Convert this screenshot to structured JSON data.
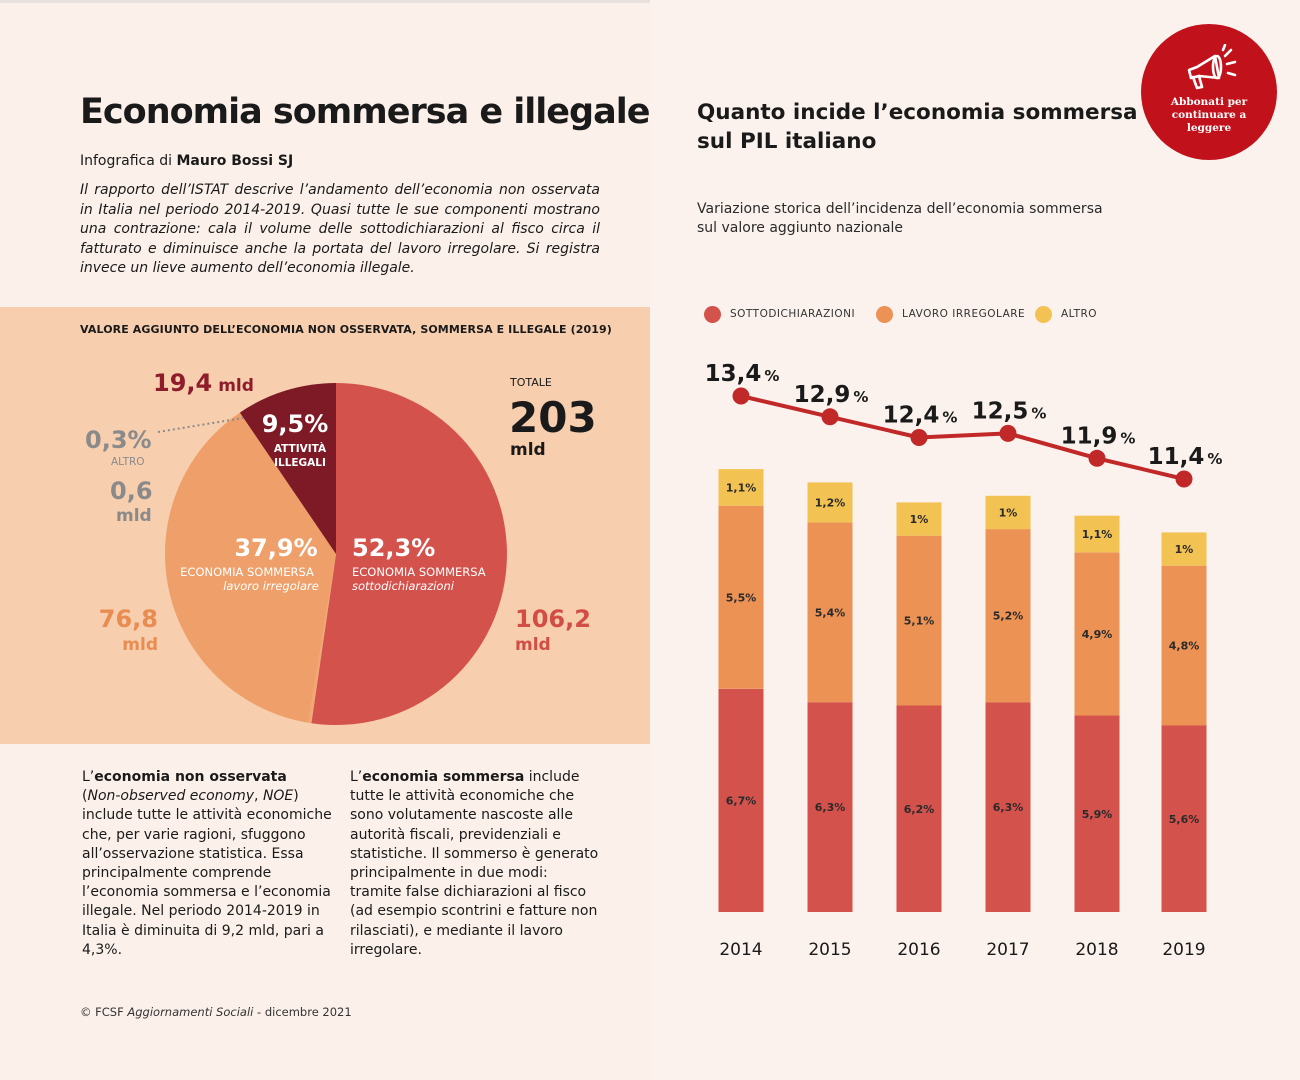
{
  "left": {
    "title": "Economia sommersa e illegale",
    "byline_prefix": "Infografica di",
    "byline_author": "Mauro Bossi SJ",
    "intro": "Il rapporto dell’ISTAT descrive l’andamento dell’economia non osservata in Italia nel periodo 2014-2019. Quasi tutte le sue componenti mostrano una contrazione: cala il volume delle sottodichiarazioni al fisco circa il fatturato e diminuisce anche la portata del lavoro irregolare. Si registra invece un lieve aumento dell’economia illegale.",
    "pie_heading": "VALORE AGGIUNTO DELL’ECONOMIA NON OSSERVATA, SOMMERSA E ILLEGALE (2019)",
    "col1": {
      "lead": "L’",
      "term": "economia non osservata",
      "open_paren": "(",
      "term_en": "Non-observed economy",
      "comma": ", ",
      "abbr": "NOE",
      "close_paren": ")",
      "body": " include tutte le attività economiche che, per varie ragioni, sfuggono all’osservazione statistica. Essa principalmente comprende l’economia sommersa e l’economia illegale. Nel periodo 2014-2019 in Italia è diminuita di 9,2 mld, pari a 4,3%."
    },
    "col2": {
      "lead": "L’",
      "term": "economia sommersa",
      "body": " include tutte le attività economiche che sono volutamente nascoste alle autorità fiscali, previdenziali e statistiche. Il sommerso è generato principalmente in due modi: tramite false dichiarazioni al fisco (ad esempio scontrini e fatture non rilasciati), e mediante il lavoro irregolare."
    },
    "footer_prefix": "© FCSF",
    "footer_pub": "Aggiornamenti Sociali",
    "footer_suffix": "- dicembre 2021"
  },
  "right": {
    "title_line1": "Quanto incide l’economia sommersa",
    "title_line2": "sul PIL italiano",
    "subtitle_line1": "Variazione storica dell’incidenza dell’economia sommersa",
    "subtitle_line2": "sul valore aggiunto nazionale"
  },
  "badge": {
    "line1": "Abbonati per",
    "line2": "continuare a",
    "line3": "leggere",
    "icon": "megaphone-icon"
  },
  "colors": {
    "sotto": "#d4524c",
    "lavoro": "#eb9254",
    "altro": "#f2c252",
    "illegale": "#7e1a26",
    "line": "#c12828",
    "pie_altro": "#f0a877",
    "pie_lavoro": "#efa06a",
    "value_altro": "#888888"
  },
  "chart_data": [
    {
      "type": "pie",
      "title": "VALORE AGGIUNTO DELL’ECONOMIA NON OSSERVATA, SOMMERSA E ILLEGALE (2019)",
      "total_label": "TOTALE",
      "total_value": "203",
      "total_unit": "mld",
      "slices": [
        {
          "key": "sotto",
          "pct": 52.3,
          "pct_label": "52,3%",
          "name": "ECONOMIA SOMMERSA",
          "sub": "sottodichiarazioni",
          "value_label": "106,2",
          "unit": "mld"
        },
        {
          "key": "altro",
          "pct": 0.3,
          "pct_label": "0,3%",
          "name": "ALTRO",
          "sub": "",
          "value_label": "0,6",
          "unit": "mld"
        },
        {
          "key": "lavoro",
          "pct": 37.9,
          "pct_label": "37,9%",
          "name": "ECONOMIA SOMMERSA",
          "sub": "lavoro irregolare",
          "value_label": "76,8",
          "unit": "mld"
        },
        {
          "key": "illegale",
          "pct": 9.5,
          "pct_label": "9,5%",
          "name_line1": "ATTIVITÀ",
          "name_line2": "ILLEGALI",
          "value_label": "19,4",
          "unit": "mld"
        }
      ]
    },
    {
      "type": "bar",
      "stacked": true,
      "with_line": true,
      "categories": [
        "2014",
        "2015",
        "2016",
        "2017",
        "2018",
        "2019"
      ],
      "legend": [
        {
          "key": "sotto",
          "label": "SOTTODICHIARAZIONI"
        },
        {
          "key": "lavoro",
          "label": "LAVORO IRREGOLARE"
        },
        {
          "key": "altro",
          "label": "ALTRO"
        }
      ],
      "series": [
        {
          "key": "sotto",
          "name": "SOTTODICHIARAZIONI",
          "values": [
            6.7,
            6.3,
            6.2,
            6.3,
            5.9,
            5.6
          ],
          "labels": [
            "6,7%",
            "6,3%",
            "6,2%",
            "6,3%",
            "5,9%",
            "5,6%"
          ]
        },
        {
          "key": "lavoro",
          "name": "LAVORO IRREGOLARE",
          "values": [
            5.5,
            5.4,
            5.1,
            5.2,
            4.9,
            4.8
          ],
          "labels": [
            "5,5%",
            "5,4%",
            "5,1%",
            "5,2%",
            "4,9%",
            "4,8%"
          ]
        },
        {
          "key": "altro",
          "name": "ALTRO",
          "values": [
            1.1,
            1.2,
            1.0,
            1.0,
            1.1,
            1.0
          ],
          "labels": [
            "1,1%",
            "1,2%",
            "1%",
            "1%",
            "1,1%",
            "1%"
          ]
        }
      ],
      "totals": [
        13.4,
        12.9,
        12.4,
        12.5,
        11.9,
        11.4
      ],
      "total_labels": [
        "13,4",
        "12,9",
        "12,4",
        "12,5",
        "11,9",
        "11,4"
      ],
      "total_unit": "%"
    }
  ]
}
